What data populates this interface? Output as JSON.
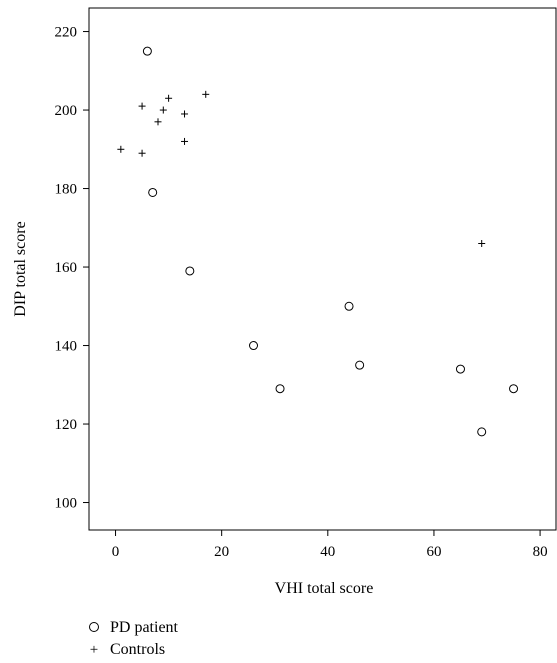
{
  "chart_data": {
    "type": "scatter",
    "xlabel": "VHI total score",
    "ylabel": "DIP total score",
    "xlim": [
      -5,
      83
    ],
    "ylim": [
      93,
      226
    ],
    "xticks": [
      0,
      20,
      40,
      60,
      80
    ],
    "yticks": [
      100,
      120,
      140,
      160,
      180,
      200,
      220
    ],
    "grid": false,
    "legend_position": "bottom-left",
    "series": [
      {
        "name": "PD patient",
        "marker": "circle",
        "points": [
          {
            "x": 6,
            "y": 215
          },
          {
            "x": 7,
            "y": 179
          },
          {
            "x": 14,
            "y": 159
          },
          {
            "x": 26,
            "y": 140
          },
          {
            "x": 31,
            "y": 129
          },
          {
            "x": 44,
            "y": 150
          },
          {
            "x": 46,
            "y": 135
          },
          {
            "x": 65,
            "y": 134
          },
          {
            "x": 69,
            "y": 118
          },
          {
            "x": 75,
            "y": 129
          }
        ]
      },
      {
        "name": "Controls",
        "marker": "plus",
        "points": [
          {
            "x": 1,
            "y": 190
          },
          {
            "x": 5,
            "y": 201
          },
          {
            "x": 5,
            "y": 189
          },
          {
            "x": 8,
            "y": 197
          },
          {
            "x": 9,
            "y": 200
          },
          {
            "x": 10,
            "y": 203
          },
          {
            "x": 13,
            "y": 199
          },
          {
            "x": 13,
            "y": 192
          },
          {
            "x": 17,
            "y": 204
          },
          {
            "x": 69,
            "y": 166
          }
        ]
      }
    ]
  },
  "legend": {
    "items": [
      {
        "symbol": "circle",
        "label": "PD patient"
      },
      {
        "symbol": "+",
        "label": "Controls"
      }
    ]
  }
}
